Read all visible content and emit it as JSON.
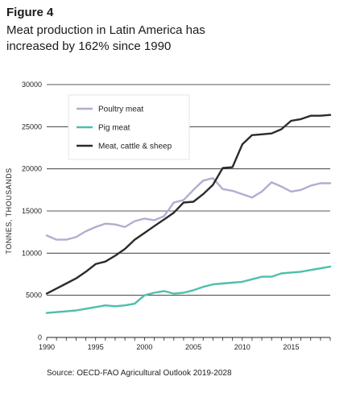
{
  "figure_label": "Figure 4",
  "figure_title": "Meat production in Latin America has increased by 162% since 1990",
  "source": "Source: OECD-FAO Agricultural Outlook 2019-2028",
  "chart_data": {
    "type": "line",
    "title": "",
    "xlabel": "",
    "ylabel": "TONNES, THOUSANDS",
    "xlim": [
      1990,
      2019
    ],
    "ylim": [
      0,
      30000
    ],
    "y_ticks": [
      0,
      5000,
      10000,
      15000,
      20000,
      25000,
      30000
    ],
    "x_ticks": [
      1990,
      1995,
      2000,
      2005,
      2010,
      2015
    ],
    "grid": "horizontal",
    "legend_position": "top-left",
    "x": [
      1990,
      1991,
      1992,
      1993,
      1994,
      1995,
      1996,
      1997,
      1998,
      1999,
      2000,
      2001,
      2002,
      2003,
      2004,
      2005,
      2006,
      2007,
      2008,
      2009,
      2010,
      2011,
      2012,
      2013,
      2014,
      2015,
      2016,
      2017,
      2018,
      2019
    ],
    "series": [
      {
        "name": "Poultry meat",
        "color": "#b0aed0",
        "values": [
          12100,
          11600,
          11600,
          11900,
          12600,
          13100,
          13500,
          13400,
          13100,
          13800,
          14100,
          13900,
          14400,
          16000,
          16300,
          17500,
          18600,
          18900,
          17600,
          17400,
          17000,
          16600,
          17300,
          18400,
          17900,
          17300,
          17500,
          18000,
          18300,
          18300
        ]
      },
      {
        "name": "Pig meat",
        "color": "#4dbfac",
        "values": [
          2900,
          3000,
          3100,
          3200,
          3400,
          3600,
          3800,
          3700,
          3800,
          4000,
          5000,
          5300,
          5500,
          5200,
          5300,
          5600,
          6000,
          6300,
          6400,
          6500,
          6600,
          6900,
          7200,
          7200,
          7600,
          7700,
          7800,
          8000,
          8200,
          8400
        ]
      },
      {
        "name": "Meat, cattle & sheep",
        "color": "#2b2b2b",
        "values": [
          5200,
          5800,
          6400,
          7000,
          7800,
          8700,
          9000,
          9700,
          10500,
          11600,
          12400,
          13200,
          14000,
          14800,
          16000,
          16100,
          17000,
          18100,
          20100,
          20200,
          22900,
          24000,
          24100,
          24200,
          24700,
          25700,
          25900,
          26300,
          26300,
          26400
        ]
      }
    ]
  }
}
